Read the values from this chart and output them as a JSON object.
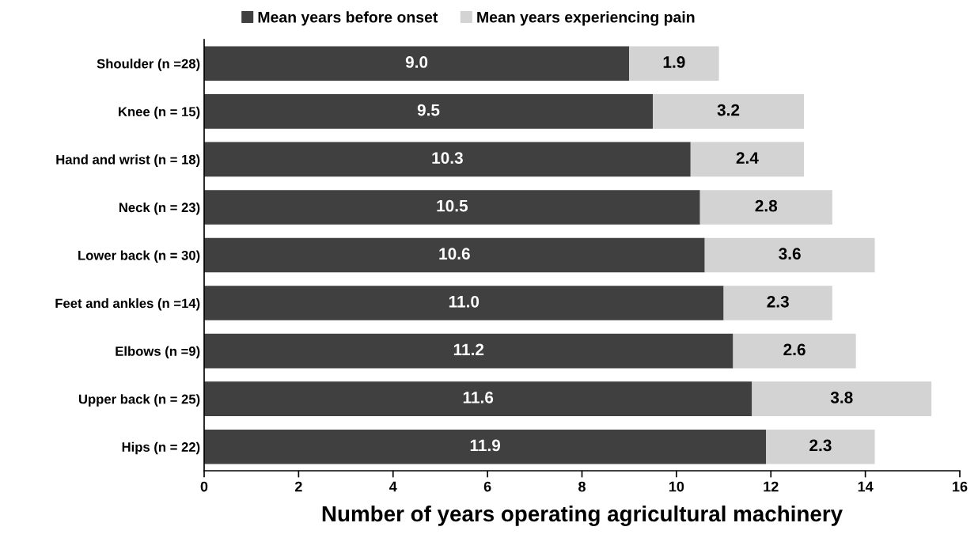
{
  "chart_data": {
    "type": "bar",
    "orientation": "horizontal",
    "stacked": true,
    "xlabel": "Number of years operating agricultural machinery",
    "categories": [
      "Shoulder (n =28)",
      "Knee (n = 15)",
      "Hand and wrist (n = 18)",
      "Neck (n = 23)",
      "Lower back (n = 30)",
      "Feet and ankles (n =14)",
      "Elbows (n =9)",
      "Upper back (n = 25)",
      "Hips (n = 22)"
    ],
    "series": [
      {
        "name": "Mean years before onset",
        "color": "#404040",
        "values": [
          9.0,
          9.5,
          10.3,
          10.5,
          10.6,
          11.0,
          11.2,
          11.6,
          11.9
        ],
        "value_labels": [
          "9.0",
          "9.5",
          "10.3",
          "10.5",
          "10.6",
          "11.0",
          "11.2",
          "11.6",
          "11.9"
        ]
      },
      {
        "name": "Mean years experiencing pain",
        "color": "#d3d3d3",
        "values": [
          1.9,
          3.2,
          2.4,
          2.8,
          3.6,
          2.3,
          2.6,
          3.8,
          2.3
        ],
        "value_labels": [
          "1.9",
          "3.2",
          "2.4",
          "2.8",
          "3.6",
          "2.3",
          "2.6",
          "3.8",
          "2.3"
        ]
      }
    ],
    "xlim": [
      0,
      16
    ],
    "xticks": [
      0,
      2,
      4,
      6,
      8,
      10,
      12,
      14,
      16
    ],
    "grid": false,
    "legend": "top"
  }
}
